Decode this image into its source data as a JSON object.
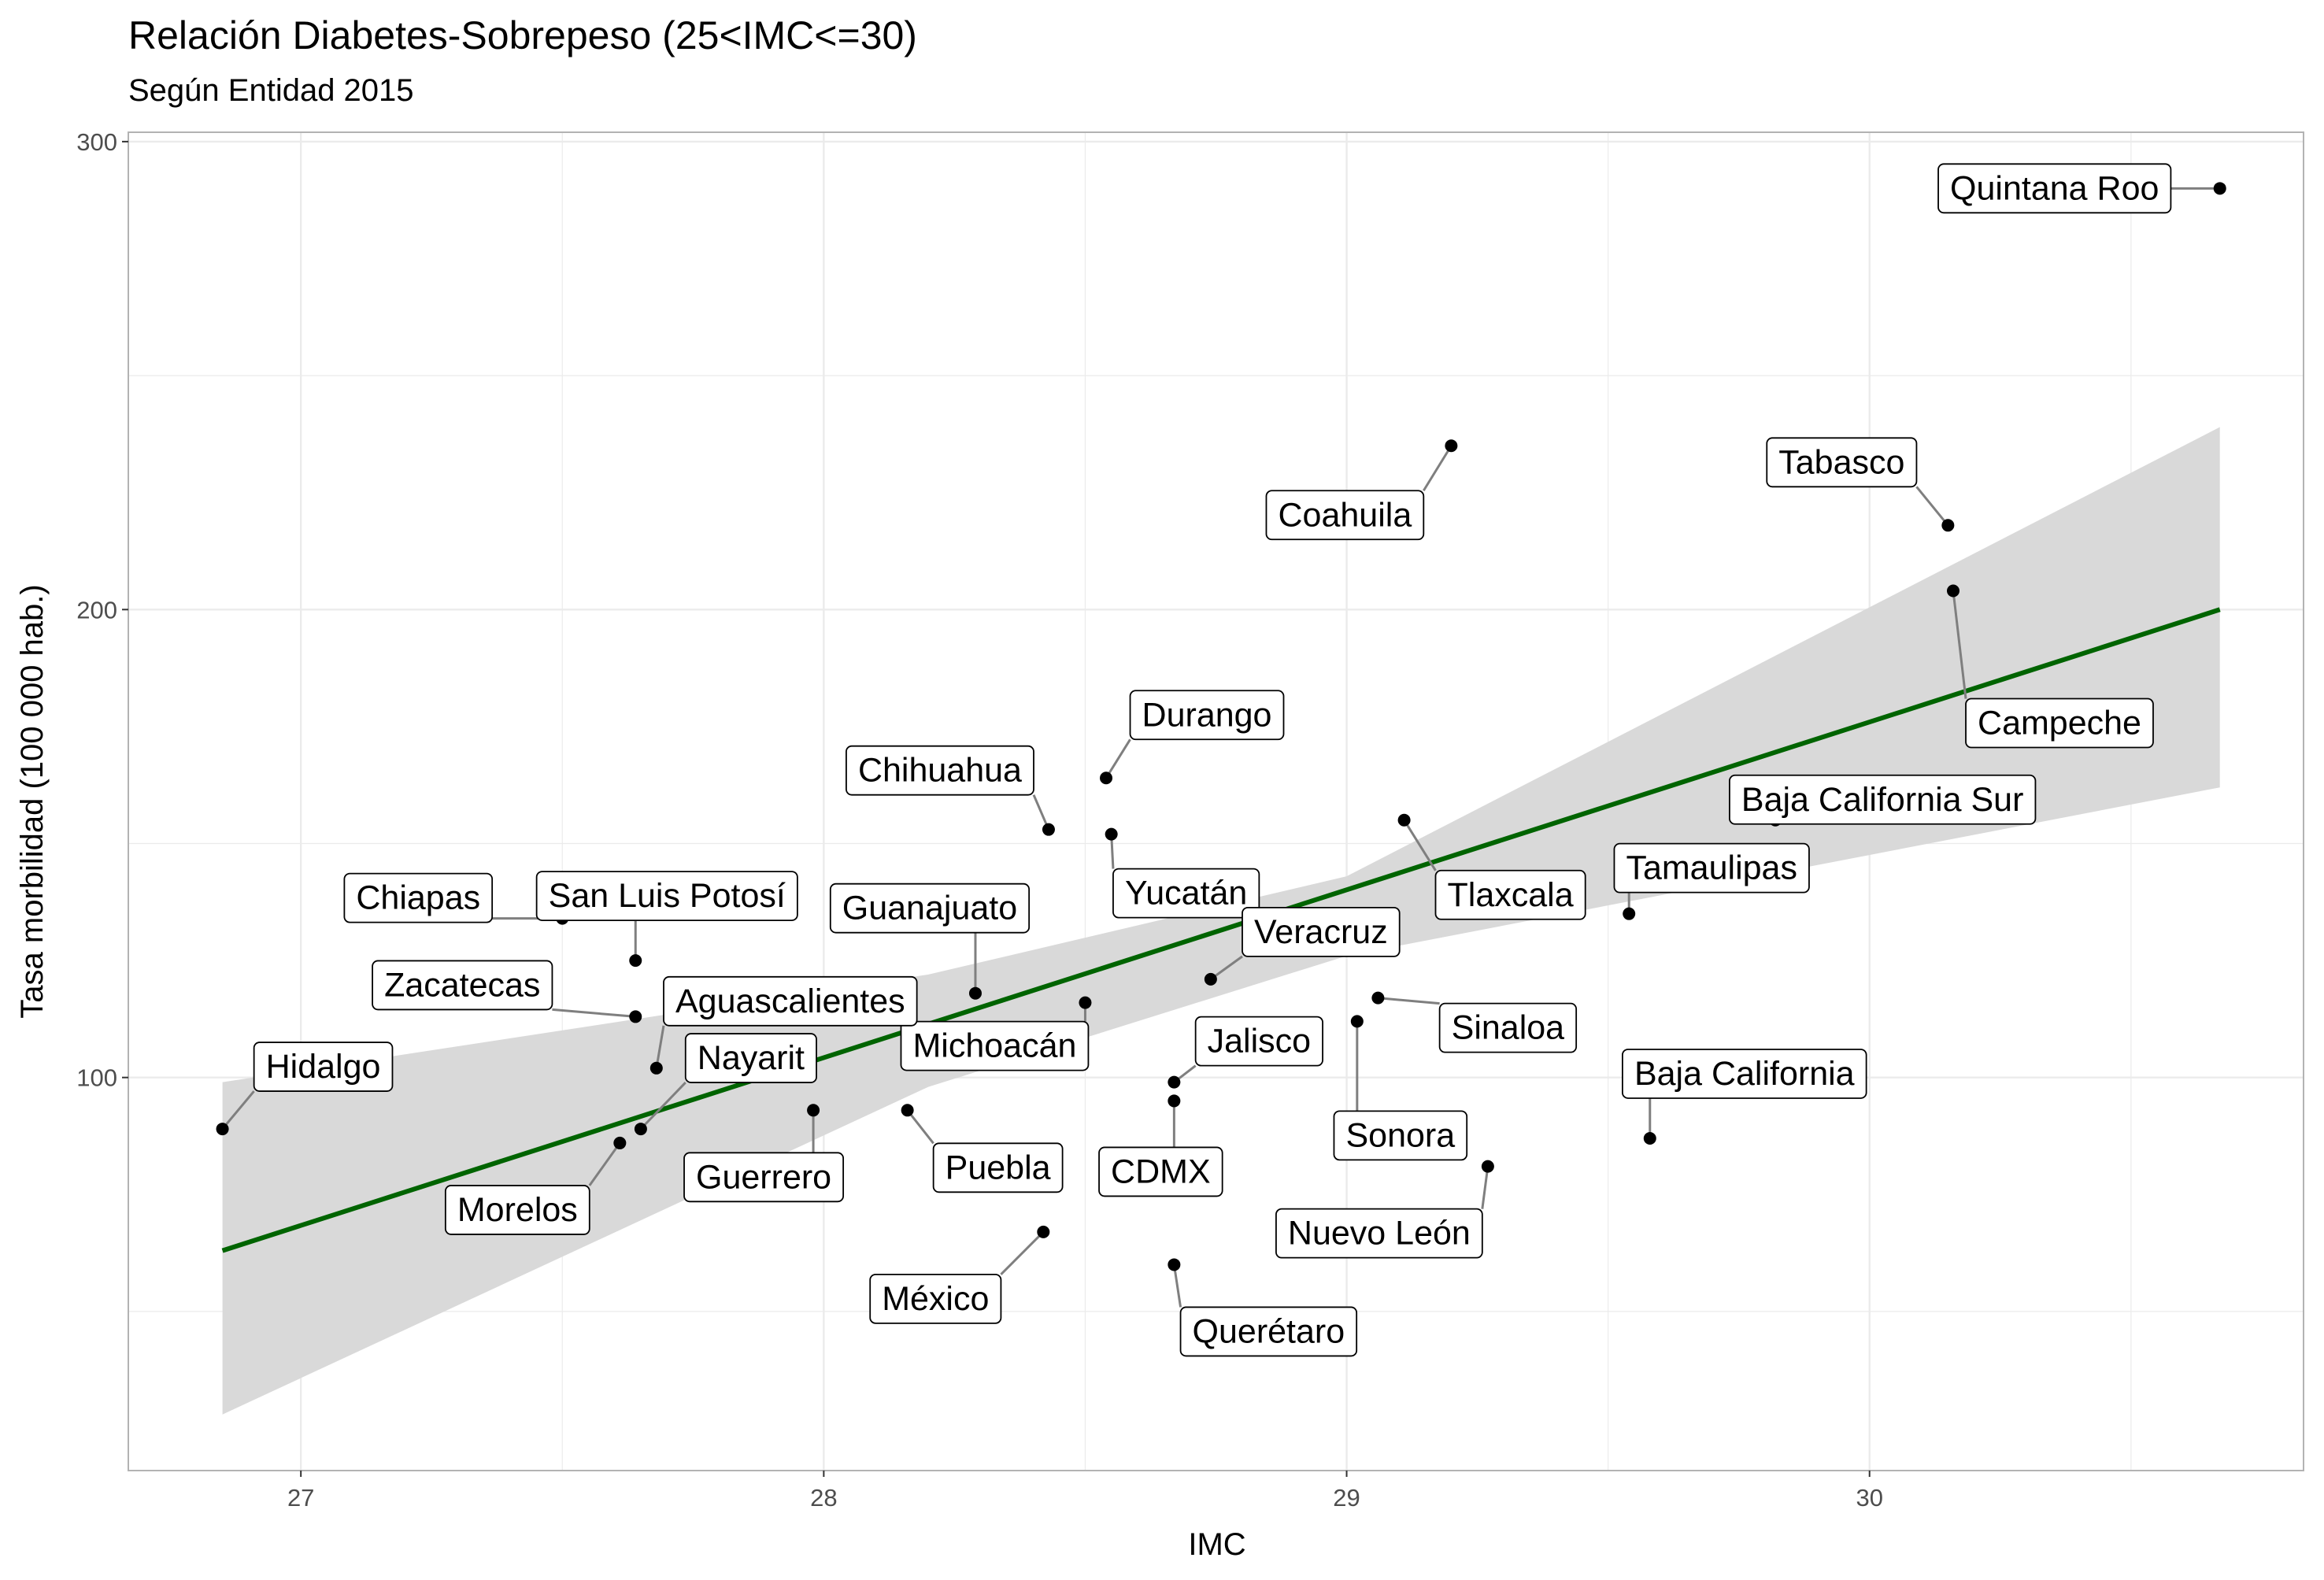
{
  "chart_data": {
    "type": "scatter",
    "title": "Relación Diabetes-Sobrepeso (25<IMC<=30)",
    "subtitle": "Según Entidad 2015",
    "xlabel": "IMC",
    "ylabel": "Tasa morbilidad (100 000 hab.)",
    "xlim": [
      26.67,
      30.83
    ],
    "ylim": [
      16,
      302
    ],
    "x_ticks": [
      27,
      28,
      29,
      30
    ],
    "y_ticks": [
      100,
      200,
      300
    ],
    "grid": true,
    "trend": {
      "method": "lm",
      "color": "#006400",
      "x": [
        26.85,
        30.67
      ],
      "y": [
        63,
        200
      ]
    },
    "confidence_band": {
      "color": "#d9d9d9",
      "x": [
        26.85,
        28.2,
        29.0,
        30.67
      ],
      "lower": [
        28,
        98,
        126,
        162
      ],
      "upper": [
        99,
        122,
        143,
        239
      ]
    },
    "points": [
      {
        "name": "Quintana Roo",
        "x": 30.67,
        "y": 290
      },
      {
        "name": "Coahuila",
        "x": 29.2,
        "y": 235
      },
      {
        "name": "Tabasco",
        "x": 30.15,
        "y": 218
      },
      {
        "name": "Campeche",
        "x": 30.16,
        "y": 204
      },
      {
        "name": "Durango",
        "x": 28.54,
        "y": 164
      },
      {
        "name": "Chihuahua",
        "x": 28.43,
        "y": 153
      },
      {
        "name": "Yucatán",
        "x": 28.55,
        "y": 152
      },
      {
        "name": "Baja California Sur",
        "x": 29.82,
        "y": 155
      },
      {
        "name": "Tlaxcala",
        "x": 29.11,
        "y": 155
      },
      {
        "name": "Tamaulipas",
        "x": 29.54,
        "y": 135
      },
      {
        "name": "Chiapas",
        "x": 27.5,
        "y": 134
      },
      {
        "name": "San Luis Potosí",
        "x": 27.64,
        "y": 125
      },
      {
        "name": "Guanajuato",
        "x": 28.29,
        "y": 118
      },
      {
        "name": "Veracruz",
        "x": 28.74,
        "y": 121
      },
      {
        "name": "Sinaloa",
        "x": 29.06,
        "y": 117
      },
      {
        "name": "Michoacán",
        "x": 28.5,
        "y": 116
      },
      {
        "name": "Zacatecas",
        "x": 27.64,
        "y": 113
      },
      {
        "name": "Sonora",
        "x": 29.02,
        "y": 112
      },
      {
        "name": "Aguascalientes",
        "x": 27.68,
        "y": 102
      },
      {
        "name": "Jalisco",
        "x": 28.67,
        "y": 99
      },
      {
        "name": "CDMX",
        "x": 28.67,
        "y": 95
      },
      {
        "name": "Guerrero",
        "x": 27.98,
        "y": 93
      },
      {
        "name": "Puebla",
        "x": 28.16,
        "y": 93
      },
      {
        "name": "Nayarit",
        "x": 27.65,
        "y": 89
      },
      {
        "name": "Hidalgo",
        "x": 26.85,
        "y": 89
      },
      {
        "name": "Baja California",
        "x": 29.58,
        "y": 87
      },
      {
        "name": "Morelos",
        "x": 27.61,
        "y": 86
      },
      {
        "name": "Nuevo León",
        "x": 29.27,
        "y": 81
      },
      {
        "name": "México",
        "x": 28.42,
        "y": 67
      },
      {
        "name": "Querétaro",
        "x": 28.67,
        "y": 60
      }
    ],
    "colors": {
      "point": "#000000",
      "grid": "#ebebeb",
      "panel_border": "#b3b3b3",
      "connector": "#7f7f7f"
    }
  }
}
